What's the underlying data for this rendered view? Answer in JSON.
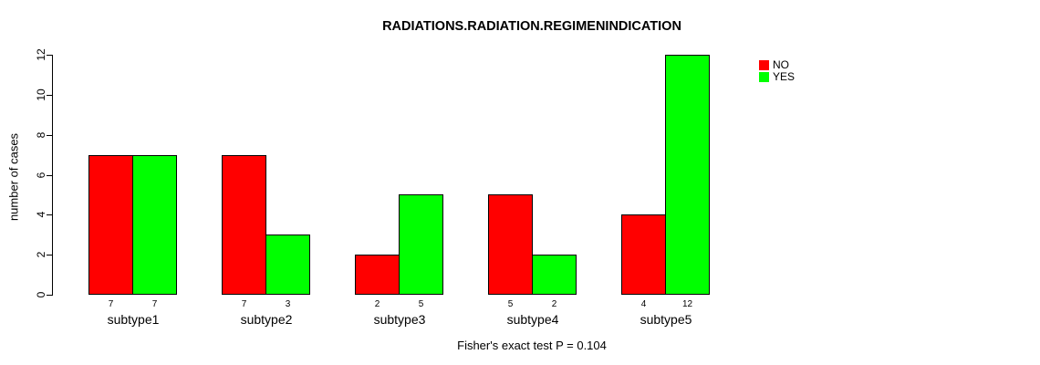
{
  "chart_data": {
    "type": "bar",
    "title": "RADIATIONS.RADIATION.REGIMENINDICATION",
    "categories": [
      "subtype1",
      "subtype2",
      "subtype3",
      "subtype4",
      "subtype5"
    ],
    "series": [
      {
        "name": "NO",
        "color": "#FF0000",
        "values": [
          7,
          7,
          2,
          5,
          4
        ]
      },
      {
        "name": "YES",
        "color": "#00FF00",
        "values": [
          7,
          3,
          5,
          2,
          12
        ]
      }
    ],
    "bar_value_labels": [
      [
        "7",
        "7"
      ],
      [
        "7",
        "3"
      ],
      [
        "2",
        "5"
      ],
      [
        "5",
        "2"
      ],
      [
        "4",
        "12"
      ]
    ],
    "xlabel": "",
    "ylabel": "number of cases",
    "ylim": [
      0,
      12
    ],
    "yticks": [
      0,
      2,
      4,
      6,
      8,
      10,
      12
    ],
    "grid": false,
    "legend_position": "top-right",
    "annotation": "Fisher's exact test P = 0.104",
    "axis_color": "#000000",
    "background_color": "#FFFFFF"
  }
}
